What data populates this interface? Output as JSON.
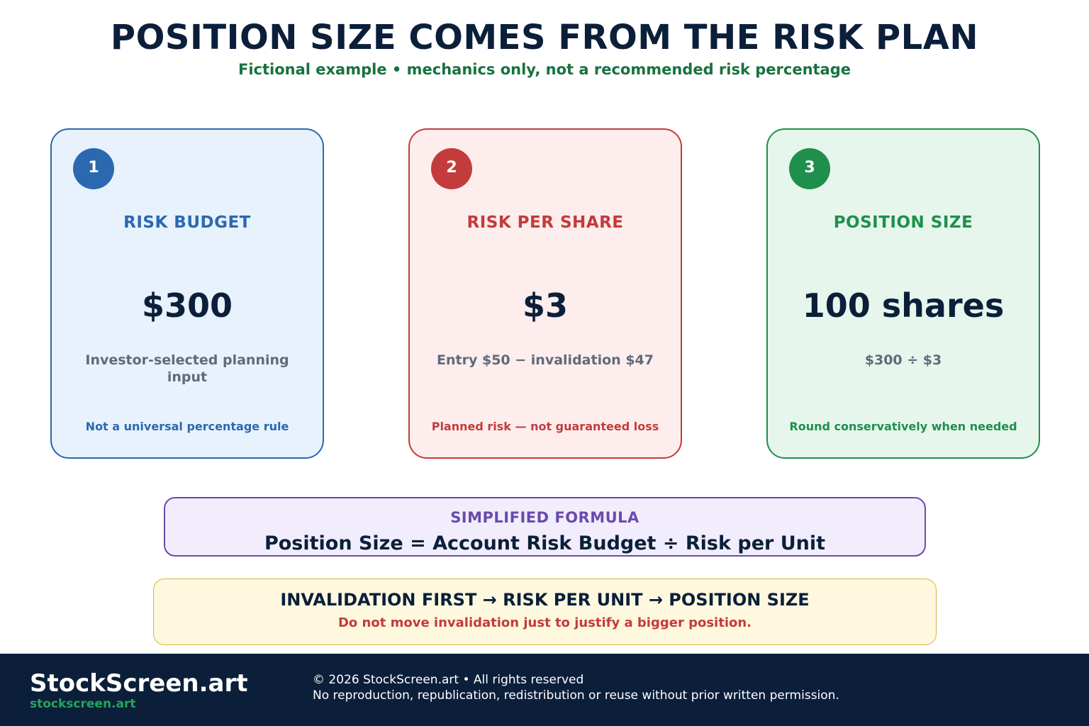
{
  "header": {
    "title": "POSITION SIZE COMES FROM THE RISK PLAN",
    "subtitle": "Fictional example • mechanics only, not a recommended risk percentage"
  },
  "steps": [
    {
      "number": "1",
      "heading": "RISK BUDGET",
      "value": "$300",
      "description": "Investor-selected planning input",
      "note": "Not a universal percentage rule",
      "color": "#2c68b0",
      "background": "#e7f2fd"
    },
    {
      "number": "2",
      "heading": "RISK PER SHARE",
      "value": "$3",
      "description": "Entry $50 − invalidation $47",
      "note": "Planned risk — not guaranteed loss",
      "color": "#c43b3b",
      "background": "#fdeded"
    },
    {
      "number": "3",
      "heading": "POSITION SIZE",
      "value": "100 shares",
      "description": "$300 ÷ $3",
      "note": "Round conservatively when needed",
      "color": "#1e904c",
      "background": "#e6f6ec"
    }
  ],
  "formula": {
    "label": "SIMPLIFIED FORMULA",
    "text": "Position Size = Account Risk Budget ÷ Risk per Unit",
    "color": "#6a4aad"
  },
  "order": {
    "text": "INVALIDATION FIRST → RISK PER UNIT → POSITION SIZE",
    "warning": "Do not move invalidation just to justify a bigger position."
  },
  "footer": {
    "brand": "StockScreen.art",
    "brand_url": "stockscreen.art",
    "copyright": "© 2026 StockScreen.art • All rights reserved",
    "rights": "No reproduction, republication, redistribution or reuse without prior written permission."
  }
}
